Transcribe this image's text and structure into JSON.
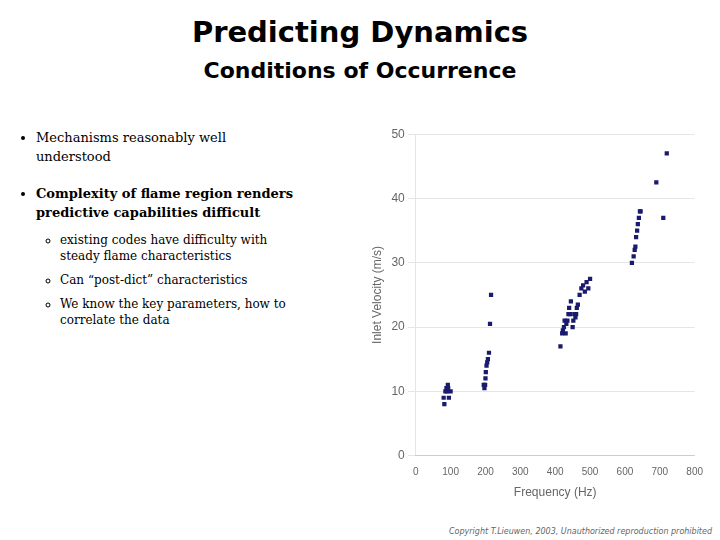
{
  "chart_data": {
    "type": "scatter",
    "title": "Predicting Dynamics",
    "subtitle": "Conditions of Occurrence",
    "annotations": [
      [
        "Mechanisms reasonably well",
        "understood"
      ],
      [
        "Complexity of flame region renders",
        "predictive capabilities difficult"
      ],
      [
        "existing codes have difficulty with",
        "steady flame characteristics"
      ],
      [
        "Can “post-dict” characteristics"
      ],
      [
        "We know the key parameters, how to",
        "correlate the data"
      ],
      [
        "Copyright T.Lieuwen, 2003, Unauthorized reproduction prohibited"
      ]
    ],
    "x": [
      80,
      82,
      85,
      88,
      90,
      92,
      93,
      95,
      100,
      195,
      197,
      199,
      200,
      201,
      203,
      205,
      207,
      210,
      213,
      216,
      415,
      420,
      422,
      425,
      427,
      430,
      432,
      435,
      438,
      440,
      443,
      445,
      450,
      452,
      455,
      458,
      460,
      462,
      465,
      470,
      475,
      480,
      485,
      490,
      495,
      500,
      620,
      625,
      628,
      630,
      632,
      635,
      637,
      640,
      643,
      645,
      690,
      710,
      720
    ],
    "values": [
      9,
      8,
      10,
      10.5,
      10,
      11,
      10.5,
      9,
      10,
      11,
      10.5,
      11,
      12,
      13,
      14,
      14.5,
      15,
      16,
      20.5,
      25,
      17,
      19,
      19.5,
      20,
      21,
      19,
      20.5,
      21,
      22,
      23,
      22,
      24,
      20,
      21,
      22,
      21.5,
      22,
      23,
      23.5,
      25,
      26,
      26.5,
      25.5,
      27,
      26,
      27.5,
      30,
      31,
      32,
      32.5,
      34,
      35,
      36,
      37,
      38,
      38,
      42.5,
      37,
      47
    ],
    "color": "#1a1a6e",
    "marker": "square",
    "xlabel": "Frequency (Hz)",
    "ylabel": "Inlet Velocity (m/s)",
    "xlim": [
      0,
      800
    ],
    "ylim": [
      0,
      50
    ],
    "xticks": [
      0,
      100,
      200,
      300,
      400,
      500,
      600,
      700,
      800
    ],
    "yticks": [
      0,
      10,
      20,
      30,
      40,
      50
    ],
    "grid": "y"
  }
}
